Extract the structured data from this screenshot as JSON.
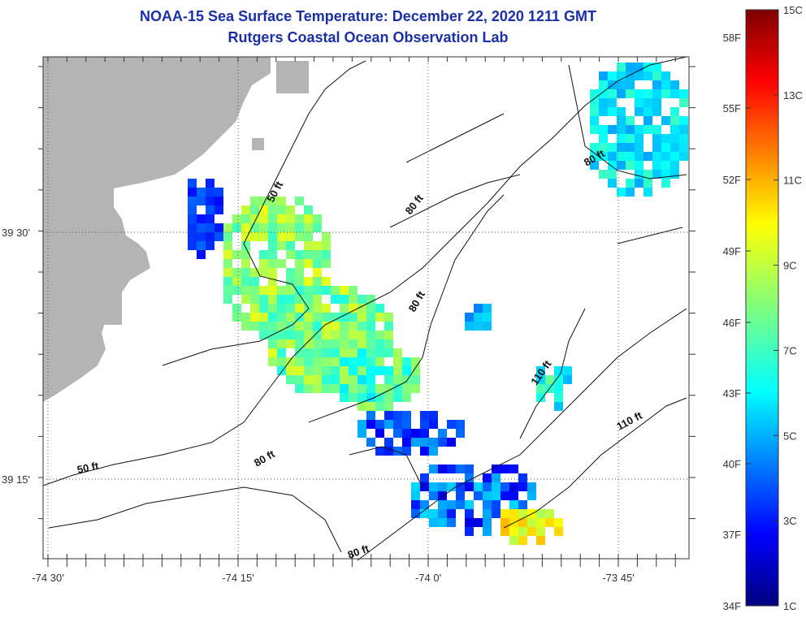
{
  "title": "NOAA-15 Sea Surface Temperature:  December 22, 2020 1211 GMT",
  "subtitle": "Rutgers Coastal Ocean Observation Lab",
  "x_ticks": [
    "-74 30'",
    "-74 15'",
    "-74 0'",
    "-73 45'"
  ],
  "y_ticks": [
    "39 30'",
    "39 15'"
  ],
  "contour_labels": {
    "c50a": "50 ft",
    "c50b": "50 ft",
    "c80a": "80 ft",
    "c80b": "80 ft",
    "c80c": "80 ft",
    "c80d": "80 ft",
    "c110a": "110 ft",
    "c110b": "110 ft"
  },
  "colorbar": {
    "fahrenheit": [
      "58F",
      "55F",
      "52F",
      "49F",
      "46F",
      "43F",
      "40F",
      "37F",
      "34F"
    ],
    "celsius": [
      "15C",
      "13C",
      "11C",
      "9C",
      "7C",
      "5C",
      "3C",
      "1C"
    ],
    "min_c": 1,
    "max_c": 15
  },
  "colors": {
    "land": "#b4b4b4",
    "title": "#1b2fa8"
  }
}
